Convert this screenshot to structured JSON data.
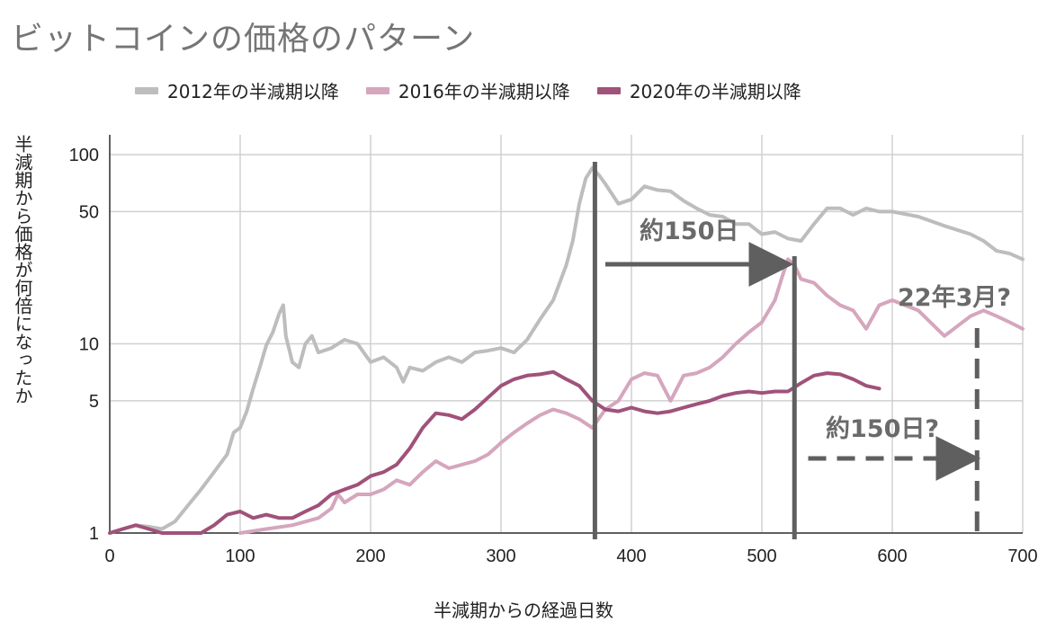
{
  "chart_data": {
    "type": "line",
    "title": "ビットコインの価格のパターン",
    "xlabel": "半減期からの経過日数",
    "ylabel": "半減期から価格が何倍になったか",
    "x_scale": "linear",
    "y_scale": "log",
    "xlim": [
      0,
      700
    ],
    "ylim": [
      1,
      100
    ],
    "x_ticks": [
      "0",
      "100",
      "200",
      "300",
      "400",
      "500",
      "600",
      "700"
    ],
    "y_ticks": [
      "1",
      "5",
      "10",
      "50",
      "100"
    ],
    "grid": true,
    "legend_position": "top",
    "series": [
      {
        "name": "2012年の半減期以降",
        "color": "#bdbdbd",
        "points": [
          [
            0,
            1
          ],
          [
            10,
            1.05
          ],
          [
            20,
            1.1
          ],
          [
            30,
            1.08
          ],
          [
            40,
            1.05
          ],
          [
            50,
            1.15
          ],
          [
            60,
            1.4
          ],
          [
            70,
            1.7
          ],
          [
            80,
            2.1
          ],
          [
            90,
            2.6
          ],
          [
            95,
            3.4
          ],
          [
            100,
            3.6
          ],
          [
            105,
            4.4
          ],
          [
            110,
            5.8
          ],
          [
            115,
            7.5
          ],
          [
            120,
            9.8
          ],
          [
            125,
            11.5
          ],
          [
            130,
            14.5
          ],
          [
            133,
            16
          ],
          [
            135,
            11
          ],
          [
            140,
            8
          ],
          [
            145,
            7.5
          ],
          [
            150,
            10
          ],
          [
            155,
            11
          ],
          [
            160,
            9
          ],
          [
            170,
            9.5
          ],
          [
            180,
            10.5
          ],
          [
            190,
            10
          ],
          [
            200,
            8
          ],
          [
            210,
            8.5
          ],
          [
            220,
            7.5
          ],
          [
            225,
            6.3
          ],
          [
            230,
            7.5
          ],
          [
            240,
            7.2
          ],
          [
            250,
            8
          ],
          [
            260,
            8.5
          ],
          [
            270,
            8
          ],
          [
            280,
            9
          ],
          [
            290,
            9.2
          ],
          [
            300,
            9.5
          ],
          [
            310,
            9
          ],
          [
            320,
            10.5
          ],
          [
            330,
            13.5
          ],
          [
            340,
            17
          ],
          [
            350,
            26
          ],
          [
            355,
            35
          ],
          [
            360,
            55
          ],
          [
            365,
            75
          ],
          [
            370,
            85
          ],
          [
            375,
            78
          ],
          [
            380,
            70
          ],
          [
            390,
            55
          ],
          [
            400,
            58
          ],
          [
            410,
            68
          ],
          [
            420,
            65
          ],
          [
            430,
            64
          ],
          [
            440,
            57
          ],
          [
            450,
            52
          ],
          [
            460,
            48
          ],
          [
            470,
            47
          ],
          [
            480,
            43
          ],
          [
            490,
            43
          ],
          [
            500,
            38
          ],
          [
            510,
            39
          ],
          [
            520,
            36
          ],
          [
            530,
            35
          ],
          [
            540,
            43
          ],
          [
            550,
            52
          ],
          [
            560,
            52
          ],
          [
            570,
            48
          ],
          [
            580,
            52
          ],
          [
            590,
            50
          ],
          [
            600,
            50
          ],
          [
            620,
            47
          ],
          [
            640,
            42
          ],
          [
            660,
            38
          ],
          [
            670,
            35
          ],
          [
            680,
            31
          ],
          [
            690,
            30
          ],
          [
            700,
            28
          ]
        ]
      },
      {
        "name": "2016年の半減期以降",
        "color": "#d5a6bd",
        "points": [
          [
            100,
            1
          ],
          [
            120,
            1.05
          ],
          [
            140,
            1.1
          ],
          [
            160,
            1.2
          ],
          [
            170,
            1.35
          ],
          [
            175,
            1.6
          ],
          [
            180,
            1.45
          ],
          [
            190,
            1.6
          ],
          [
            200,
            1.6
          ],
          [
            210,
            1.7
          ],
          [
            220,
            1.9
          ],
          [
            230,
            1.8
          ],
          [
            240,
            2.1
          ],
          [
            250,
            2.4
          ],
          [
            260,
            2.2
          ],
          [
            270,
            2.3
          ],
          [
            280,
            2.4
          ],
          [
            290,
            2.6
          ],
          [
            300,
            3
          ],
          [
            310,
            3.4
          ],
          [
            320,
            3.8
          ],
          [
            330,
            4.2
          ],
          [
            340,
            4.5
          ],
          [
            350,
            4.3
          ],
          [
            360,
            4
          ],
          [
            370,
            3.6
          ],
          [
            380,
            4.5
          ],
          [
            390,
            5
          ],
          [
            400,
            6.5
          ],
          [
            410,
            7
          ],
          [
            420,
            6.8
          ],
          [
            430,
            5
          ],
          [
            440,
            6.8
          ],
          [
            450,
            7
          ],
          [
            460,
            7.5
          ],
          [
            470,
            8.5
          ],
          [
            480,
            10
          ],
          [
            490,
            11.5
          ],
          [
            500,
            13
          ],
          [
            510,
            17
          ],
          [
            515,
            22
          ],
          [
            520,
            28
          ],
          [
            525,
            26
          ],
          [
            530,
            22
          ],
          [
            540,
            21
          ],
          [
            550,
            18
          ],
          [
            560,
            16
          ],
          [
            570,
            15
          ],
          [
            580,
            12
          ],
          [
            590,
            16
          ],
          [
            600,
            17
          ],
          [
            620,
            15
          ],
          [
            640,
            11
          ],
          [
            660,
            14
          ],
          [
            670,
            15
          ],
          [
            680,
            14
          ],
          [
            690,
            13
          ],
          [
            700,
            12
          ]
        ]
      },
      {
        "name": "2020年の半減期以降",
        "color": "#a0527a",
        "points": [
          [
            0,
            1
          ],
          [
            10,
            1.05
          ],
          [
            20,
            1.1
          ],
          [
            30,
            1.05
          ],
          [
            40,
            1
          ],
          [
            60,
            1
          ],
          [
            70,
            1
          ],
          [
            80,
            1.1
          ],
          [
            90,
            1.25
          ],
          [
            100,
            1.3
          ],
          [
            110,
            1.2
          ],
          [
            120,
            1.25
          ],
          [
            130,
            1.2
          ],
          [
            140,
            1.2
          ],
          [
            150,
            1.3
          ],
          [
            160,
            1.4
          ],
          [
            170,
            1.6
          ],
          [
            180,
            1.7
          ],
          [
            190,
            1.8
          ],
          [
            200,
            2
          ],
          [
            210,
            2.1
          ],
          [
            220,
            2.3
          ],
          [
            230,
            2.8
          ],
          [
            240,
            3.6
          ],
          [
            250,
            4.3
          ],
          [
            260,
            4.2
          ],
          [
            270,
            4
          ],
          [
            280,
            4.5
          ],
          [
            290,
            5.2
          ],
          [
            300,
            6
          ],
          [
            310,
            6.5
          ],
          [
            320,
            6.8
          ],
          [
            330,
            6.9
          ],
          [
            340,
            7.1
          ],
          [
            350,
            6.5
          ],
          [
            360,
            6
          ],
          [
            370,
            5
          ],
          [
            380,
            4.5
          ],
          [
            390,
            4.4
          ],
          [
            400,
            4.6
          ],
          [
            410,
            4.4
          ],
          [
            420,
            4.3
          ],
          [
            430,
            4.4
          ],
          [
            440,
            4.6
          ],
          [
            450,
            4.8
          ],
          [
            460,
            5
          ],
          [
            470,
            5.3
          ],
          [
            480,
            5.5
          ],
          [
            490,
            5.6
          ],
          [
            500,
            5.5
          ],
          [
            510,
            5.6
          ],
          [
            520,
            5.6
          ],
          [
            530,
            6.2
          ],
          [
            540,
            6.8
          ],
          [
            550,
            7
          ],
          [
            560,
            6.9
          ],
          [
            570,
            6.5
          ],
          [
            580,
            6.0
          ],
          [
            590,
            5.8
          ]
        ]
      }
    ],
    "annotations": [
      {
        "text": "約150日"
      },
      {
        "text": "約150日?"
      },
      {
        "text": "22年3月?"
      }
    ],
    "reference_lines": [
      {
        "x": 372,
        "style": "solid"
      },
      {
        "x": 525,
        "style": "solid"
      },
      {
        "x": 665,
        "style": "dashed"
      }
    ],
    "arrows": [
      {
        "from_x": 380,
        "to_x": 523,
        "y": 28,
        "style": "solid"
      },
      {
        "from_x": 530,
        "to_x": 665,
        "y": 2.3,
        "style": "dashed"
      }
    ]
  }
}
